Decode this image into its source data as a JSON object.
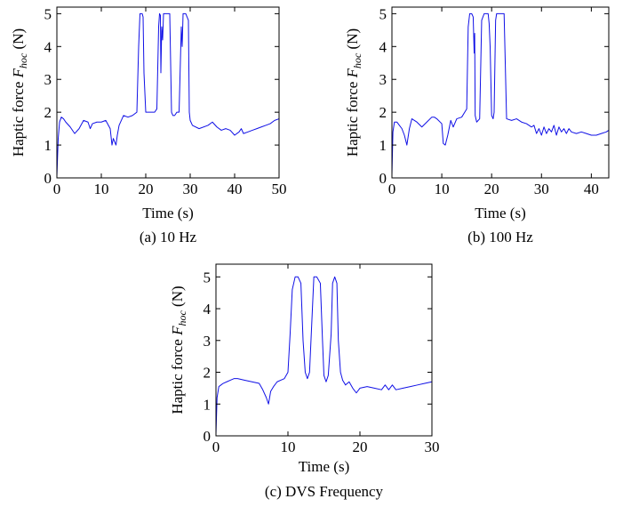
{
  "line_color": "#1010e6",
  "chart_data": [
    {
      "type": "line",
      "caption": "(a) 10 Hz",
      "xlabel": "Time (s)",
      "ylabel_main": "Haptic force ",
      "ylabel_symbol": "F",
      "ylabel_sub": "hoc",
      "ylabel_unit": " (N)",
      "xlim": [
        0,
        50
      ],
      "ylim": [
        0,
        5.2
      ],
      "xticks": [
        0,
        10,
        20,
        30,
        40,
        50
      ],
      "yticks": [
        0,
        1,
        2,
        3,
        4,
        5
      ],
      "grid": false,
      "series": [
        {
          "x": [
            0,
            0.3,
            0.6,
            1,
            1.5,
            2,
            3,
            4,
            5,
            6,
            7,
            7.5,
            8,
            9,
            10,
            11,
            12,
            12.4,
            12.7,
            13.3,
            13.6,
            14,
            15,
            16,
            17,
            18,
            18.4,
            18.7,
            19,
            19.2,
            19.4,
            19.6,
            20,
            21,
            22,
            22.5,
            22.9,
            23.1,
            23.3,
            23.4,
            23.6,
            23.8,
            24,
            24.2,
            24.5,
            25,
            25.4,
            25.8,
            26.1,
            26.5,
            27,
            27.5,
            28,
            28.2,
            28.4,
            28.7,
            29,
            29.6,
            29.8,
            30,
            30.5,
            32,
            34,
            35,
            36,
            37,
            38,
            39,
            40,
            41,
            41.5,
            42,
            43,
            44,
            45,
            46,
            47,
            48,
            49,
            50
          ],
          "y": [
            0.05,
            1.2,
            1.7,
            1.85,
            1.8,
            1.7,
            1.55,
            1.35,
            1.5,
            1.75,
            1.7,
            1.5,
            1.65,
            1.7,
            1.7,
            1.75,
            1.5,
            1.0,
            1.2,
            1.0,
            1.3,
            1.6,
            1.9,
            1.85,
            1.9,
            2.0,
            4.0,
            5.0,
            5.0,
            5.0,
            4.9,
            3.2,
            2.0,
            2.0,
            2.0,
            2.1,
            4.6,
            5.0,
            4.95,
            3.2,
            4.6,
            4.2,
            5.0,
            5.0,
            5.0,
            5.0,
            5.0,
            2.0,
            1.9,
            1.9,
            2.0,
            2.0,
            4.6,
            4.0,
            5.0,
            5.0,
            5.0,
            4.8,
            2.0,
            1.75,
            1.6,
            1.5,
            1.6,
            1.7,
            1.55,
            1.45,
            1.5,
            1.45,
            1.3,
            1.4,
            1.5,
            1.35,
            1.4,
            1.45,
            1.5,
            1.55,
            1.6,
            1.65,
            1.75,
            1.8
          ]
        }
      ]
    },
    {
      "type": "line",
      "caption": "(b) 100 Hz",
      "xlabel": "Time (s)",
      "ylabel_main": "Haptic force ",
      "ylabel_symbol": "F",
      "ylabel_sub": "hoc",
      "ylabel_unit": " (N)",
      "xlim": [
        0,
        43.5
      ],
      "ylim": [
        0,
        5.2
      ],
      "xticks": [
        0,
        10,
        20,
        30,
        40
      ],
      "yticks": [
        0,
        1,
        2,
        3,
        4,
        5
      ],
      "grid": false,
      "series": [
        {
          "x": [
            0,
            0.2,
            0.5,
            1,
            1.5,
            2,
            2.5,
            3,
            3.5,
            4,
            5,
            6,
            7,
            8,
            8.5,
            9,
            10,
            10.3,
            10.7,
            11.2,
            11.8,
            12.3,
            13,
            14,
            15,
            15.3,
            15.6,
            16,
            16.3,
            16.5,
            16.6,
            16.7,
            17,
            17.6,
            18,
            18.5,
            19,
            19.3,
            19.5,
            19.7,
            20,
            20.3,
            20.5,
            20.8,
            21,
            21.5,
            22,
            22.5,
            23,
            24,
            25,
            26,
            27,
            28,
            28.5,
            29,
            29.5,
            30,
            30.5,
            31,
            31.5,
            32,
            32.5,
            33,
            33.5,
            34,
            34.5,
            35,
            35.5,
            36,
            37,
            38,
            39,
            40,
            41,
            42,
            43,
            43.5
          ],
          "y": [
            0.1,
            1.4,
            1.7,
            1.7,
            1.6,
            1.5,
            1.3,
            1.0,
            1.5,
            1.8,
            1.7,
            1.55,
            1.7,
            1.85,
            1.85,
            1.8,
            1.65,
            1.05,
            1.0,
            1.3,
            1.75,
            1.55,
            1.8,
            1.85,
            2.1,
            4.6,
            5.0,
            5.0,
            4.9,
            3.8,
            4.4,
            1.9,
            1.7,
            1.8,
            4.8,
            5.0,
            5.0,
            5.0,
            4.7,
            4.0,
            1.9,
            1.8,
            2.0,
            4.8,
            5.0,
            5.0,
            5.0,
            5.0,
            1.8,
            1.75,
            1.8,
            1.7,
            1.65,
            1.55,
            1.6,
            1.35,
            1.5,
            1.3,
            1.55,
            1.35,
            1.5,
            1.4,
            1.6,
            1.3,
            1.55,
            1.4,
            1.5,
            1.35,
            1.5,
            1.4,
            1.35,
            1.4,
            1.35,
            1.3,
            1.3,
            1.35,
            1.4,
            1.45
          ]
        }
      ]
    },
    {
      "type": "line",
      "caption": "(c) DVS Frequency",
      "xlabel": "Time (s)",
      "ylabel_main": "Haptic force ",
      "ylabel_symbol": "F",
      "ylabel_sub": "hoc",
      "ylabel_unit": " (N)",
      "xlim": [
        0,
        30
      ],
      "ylim": [
        0,
        5.4
      ],
      "xticks": [
        0,
        10,
        20,
        30
      ],
      "yticks": [
        0,
        1,
        2,
        3,
        4,
        5
      ],
      "grid": false,
      "series": [
        {
          "x": [
            0,
            0.15,
            0.4,
            0.7,
            1,
            1.5,
            2,
            2.5,
            3,
            4,
            5,
            6,
            6.5,
            7,
            7.3,
            7.6,
            8,
            8.5,
            9,
            9.5,
            10,
            10.3,
            10.6,
            11,
            11.4,
            11.8,
            12.1,
            12.4,
            12.7,
            13,
            13.3,
            13.6,
            14,
            14.5,
            14.8,
            15,
            15.3,
            15.6,
            16,
            16.2,
            16.5,
            16.8,
            17,
            17.3,
            17.6,
            18,
            18.5,
            19,
            19.5,
            20,
            21,
            22,
            23,
            23.5,
            24,
            24.5,
            25,
            26,
            27,
            28,
            29,
            30
          ],
          "y": [
            0.05,
            1.2,
            1.55,
            1.6,
            1.65,
            1.7,
            1.75,
            1.8,
            1.8,
            1.75,
            1.7,
            1.65,
            1.45,
            1.2,
            1.0,
            1.4,
            1.55,
            1.7,
            1.75,
            1.8,
            2.0,
            3.2,
            4.6,
            5.0,
            5.0,
            4.8,
            3.0,
            2.0,
            1.8,
            2.0,
            3.5,
            5.0,
            5.0,
            4.8,
            3.0,
            1.9,
            1.7,
            1.9,
            3.2,
            4.8,
            5.0,
            4.8,
            3.0,
            2.0,
            1.75,
            1.6,
            1.7,
            1.5,
            1.35,
            1.5,
            1.55,
            1.5,
            1.45,
            1.6,
            1.45,
            1.6,
            1.45,
            1.5,
            1.55,
            1.6,
            1.65,
            1.7
          ]
        }
      ]
    }
  ]
}
